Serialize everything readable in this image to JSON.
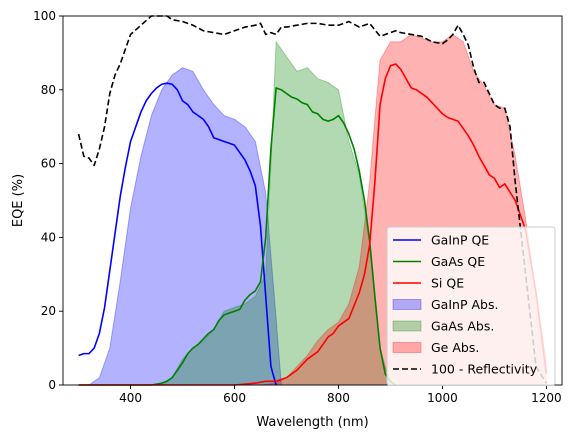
{
  "chart_data": {
    "type": "area",
    "xlabel": "Wavelength (nm)",
    "ylabel": "EQE (%)",
    "xlim": [
      270,
      1230
    ],
    "ylim": [
      0,
      100
    ],
    "xticks": [
      400,
      600,
      800,
      1000,
      1200
    ],
    "yticks": [
      0,
      20,
      40,
      60,
      80,
      100
    ],
    "grid": false,
    "legend_position": "bottom-right",
    "series": [
      {
        "name": "GaInP Abs.",
        "kind": "fill",
        "color": "#0000ff",
        "x": [
          300,
          320,
          340,
          360,
          380,
          400,
          420,
          440,
          460,
          480,
          500,
          520,
          540,
          560,
          580,
          600,
          620,
          640,
          660,
          680,
          690
        ],
        "y": [
          0,
          0,
          2,
          10,
          28,
          48,
          62,
          73,
          80,
          84,
          86,
          85,
          80,
          76,
          73,
          72,
          70,
          66,
          52,
          18,
          0
        ]
      },
      {
        "name": "GaAs Abs.",
        "kind": "fill",
        "color": "#008000",
        "x": [
          300,
          400,
          440,
          460,
          480,
          500,
          520,
          540,
          560,
          580,
          600,
          620,
          640,
          660,
          670,
          680,
          700,
          720,
          740,
          760,
          780,
          800,
          820,
          840,
          860,
          880,
          900
        ],
        "y": [
          0,
          0,
          0,
          0.5,
          2,
          7,
          10,
          12,
          15,
          20,
          21,
          22,
          24,
          30,
          60,
          93,
          89,
          85,
          86,
          83,
          82,
          80,
          66,
          57,
          38,
          10,
          0
        ]
      },
      {
        "name": "Ge Abs.",
        "kind": "fill",
        "color": "#ff0000",
        "x": [
          300,
          600,
          650,
          680,
          700,
          720,
          740,
          760,
          780,
          800,
          820,
          840,
          860,
          870,
          880,
          900,
          920,
          940,
          960,
          980,
          1000,
          1020,
          1040,
          1060,
          1080,
          1100,
          1120,
          1140,
          1160,
          1180,
          1200
        ],
        "y": [
          0,
          0,
          0,
          0.5,
          2,
          5,
          8,
          12,
          15,
          17,
          22,
          32,
          55,
          72,
          88,
          93,
          93,
          95,
          94,
          93,
          93,
          95,
          93,
          85,
          81,
          76,
          75,
          62,
          45,
          25,
          6
        ]
      },
      {
        "name": "GaInP QE",
        "kind": "line",
        "color": "#0000ff",
        "x": [
          300,
          310,
          320,
          330,
          340,
          350,
          360,
          370,
          380,
          390,
          400,
          410,
          420,
          430,
          440,
          450,
          460,
          470,
          480,
          490,
          500,
          510,
          520,
          530,
          540,
          550,
          560,
          570,
          580,
          590,
          600,
          610,
          620,
          630,
          640,
          650,
          660,
          670,
          680
        ],
        "y": [
          8,
          8.5,
          8.5,
          10,
          14,
          21,
          31,
          41,
          51,
          59,
          66,
          70,
          74,
          77,
          79,
          80.5,
          81.5,
          81.8,
          81.5,
          80,
          77,
          76,
          74,
          73,
          72,
          70,
          67,
          66.5,
          66,
          65.5,
          65,
          63,
          61,
          58,
          54,
          43,
          24,
          5,
          0
        ]
      },
      {
        "name": "GaAs QE",
        "kind": "line",
        "color": "#008000",
        "x": [
          300,
          400,
          440,
          460,
          470,
          480,
          490,
          500,
          510,
          520,
          530,
          540,
          550,
          560,
          570,
          580,
          590,
          600,
          610,
          620,
          630,
          640,
          650,
          660,
          670,
          680,
          690,
          700,
          710,
          720,
          730,
          740,
          750,
          760,
          770,
          780,
          790,
          800,
          810,
          820,
          830,
          840,
          850,
          860,
          870,
          880,
          890,
          900,
          910
        ],
        "y": [
          0,
          0,
          0,
          0.5,
          1,
          2,
          4,
          6,
          8.5,
          10,
          11,
          12.5,
          14,
          15,
          17.5,
          19,
          19.5,
          20,
          20.5,
          23,
          24.5,
          25.5,
          28,
          40,
          64,
          80.5,
          80,
          79,
          78,
          77.5,
          76.5,
          76,
          74,
          73.5,
          72,
          71.5,
          72,
          73,
          71,
          68,
          64,
          58,
          50,
          39,
          24,
          10,
          3,
          1,
          0
        ]
      },
      {
        "name": "Si QE",
        "kind": "line",
        "color": "#ff0000",
        "x": [
          300,
          600,
          640,
          660,
          680,
          700,
          720,
          740,
          760,
          780,
          790,
          800,
          820,
          840,
          850,
          860,
          870,
          880,
          890,
          900,
          910,
          920,
          930,
          940,
          950,
          960,
          970,
          980,
          990,
          1000,
          1010,
          1020,
          1030,
          1040,
          1050,
          1060,
          1070,
          1080,
          1090,
          1100,
          1110,
          1120,
          1140,
          1160,
          1180,
          1200
        ],
        "y": [
          0,
          0,
          0.5,
          1,
          1,
          2,
          4,
          7,
          9,
          13,
          14,
          16,
          18,
          25,
          30,
          38,
          55,
          76,
          83,
          86.5,
          87,
          85.5,
          83,
          80.5,
          80,
          79,
          78,
          76.5,
          75,
          73.5,
          72.5,
          72,
          71.5,
          69.5,
          67.5,
          65,
          62,
          59.5,
          57,
          56,
          53.5,
          54.5,
          50,
          42,
          25,
          3
        ]
      },
      {
        "name": "100 - Reflectivity",
        "kind": "line",
        "color": "#000000",
        "dashed": true,
        "x": [
          300,
          310,
          320,
          330,
          340,
          350,
          360,
          370,
          380,
          390,
          400,
          420,
          440,
          460,
          470,
          480,
          500,
          520,
          540,
          560,
          580,
          600,
          620,
          640,
          650,
          660,
          670,
          680,
          690,
          700,
          720,
          740,
          760,
          780,
          800,
          820,
          840,
          860,
          880,
          900,
          910,
          920,
          940,
          960,
          980,
          1000,
          1010,
          1020,
          1030,
          1040,
          1050,
          1060,
          1070,
          1080,
          1090,
          1100,
          1110,
          1120,
          1130,
          1140,
          1160,
          1180,
          1200
        ],
        "y": [
          68,
          62,
          61.5,
          59.5,
          64,
          70,
          79,
          84,
          87,
          91,
          95,
          97.5,
          100,
          100,
          100,
          99,
          98.5,
          97.5,
          96,
          95.5,
          95,
          96,
          97,
          97.5,
          98,
          95,
          95.5,
          95,
          97,
          97,
          97.5,
          98,
          98,
          97.5,
          97.5,
          98.5,
          97,
          98,
          94.5,
          95.5,
          96,
          95.5,
          95,
          94.5,
          93,
          92.5,
          93.5,
          95,
          97.5,
          95,
          92,
          86,
          82,
          82,
          79,
          76,
          75,
          75,
          70,
          55,
          30,
          5,
          0.5
        ]
      }
    ],
    "legend": [
      "GaInP QE",
      "GaAs QE",
      "Si QE",
      "GaInP Abs.",
      "GaAs Abs.",
      "Ge Abs.",
      "100 - Reflectivity"
    ]
  }
}
